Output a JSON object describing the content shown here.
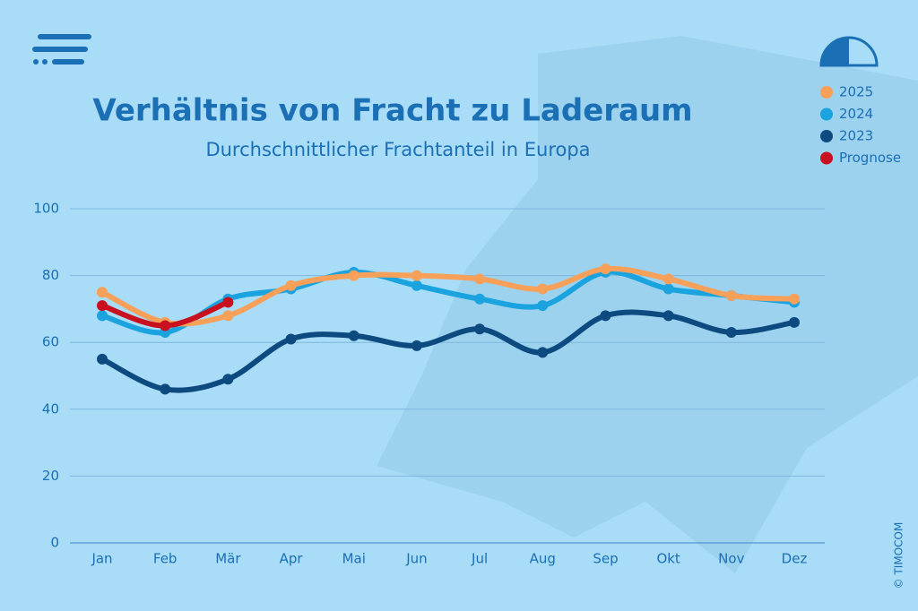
{
  "chart_data": {
    "type": "line",
    "title": "Verhältnis von Fracht zu Laderaum",
    "subtitle": "Durchschnittlicher Frachtanteil in Europa",
    "source": "© TIMOCOM",
    "categories": [
      "Jan",
      "Feb",
      "Mär",
      "Apr",
      "Mai",
      "Jun",
      "Jul",
      "Aug",
      "Sep",
      "Okt",
      "Nov",
      "Dez"
    ],
    "series": [
      {
        "name": "2025",
        "color": "#f7a05a",
        "values": [
          75,
          66,
          68,
          77,
          80,
          80,
          79,
          76,
          82,
          79,
          74,
          73
        ]
      },
      {
        "name": "2024",
        "color": "#1ba3e0",
        "values": [
          68,
          63,
          73,
          76,
          81,
          77,
          73,
          71,
          81,
          76,
          74,
          72
        ]
      },
      {
        "name": "2023",
        "color": "#0d4a80",
        "values": [
          55,
          46,
          49,
          61,
          62,
          59,
          64,
          57,
          68,
          68,
          63,
          66
        ]
      },
      {
        "name": "Prognose",
        "color": "#c8101e",
        "values": [
          71,
          65,
          72,
          null,
          null,
          null,
          null,
          null,
          null,
          null,
          null,
          null
        ]
      }
    ],
    "ylim": [
      0,
      100
    ],
    "yticks": [
      0,
      20,
      40,
      60,
      80,
      100
    ],
    "grid": true
  }
}
